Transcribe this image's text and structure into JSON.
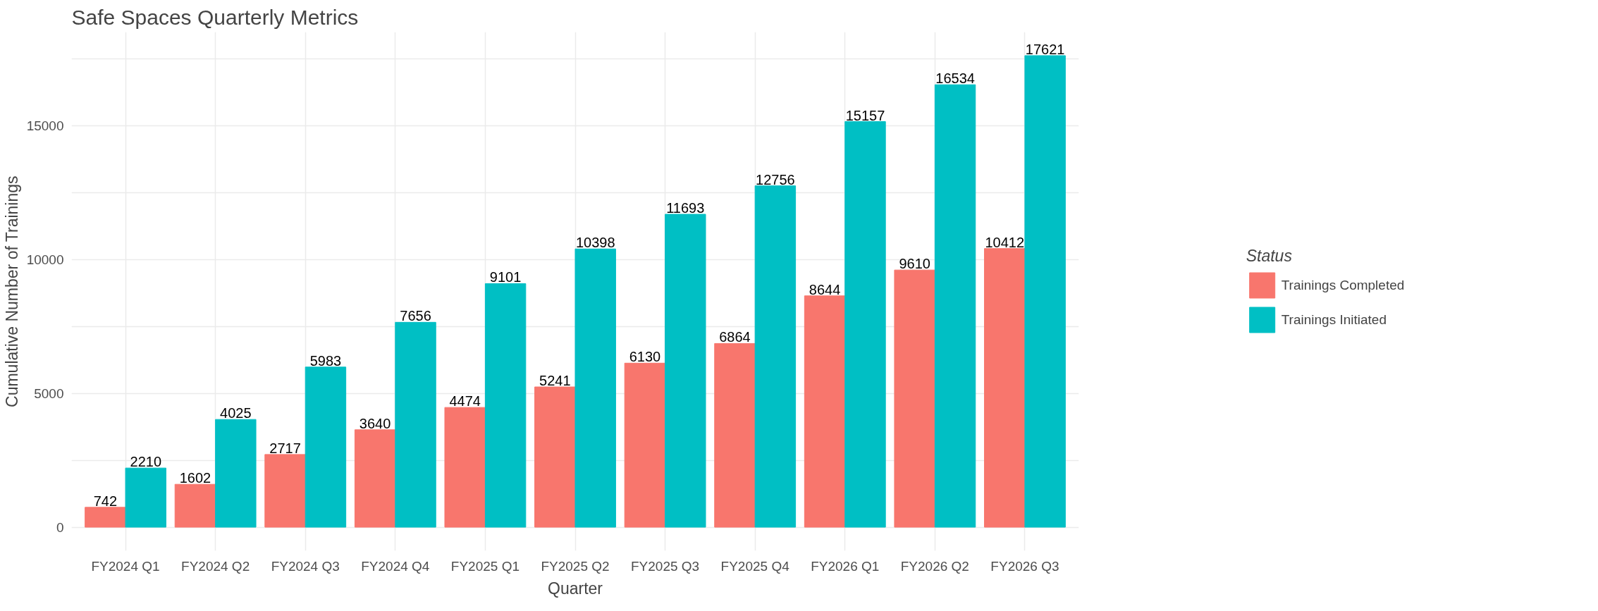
{
  "chart_data": {
    "type": "bar",
    "title": "Safe Spaces Quarterly Metrics",
    "xlabel": "Quarter",
    "ylabel": "Cumulative Number of Trainings",
    "legend_title": "Status",
    "categories": [
      "FY2024 Q1",
      "FY2024 Q2",
      "FY2024 Q3",
      "FY2024 Q4",
      "FY2025 Q1",
      "FY2025 Q2",
      "FY2025 Q3",
      "FY2025 Q4",
      "FY2026 Q1",
      "FY2026 Q2",
      "FY2026 Q3"
    ],
    "series": [
      {
        "name": "Trainings Completed",
        "color": "#f8766d",
        "values": [
          742,
          1602,
          2717,
          3640,
          4474,
          5241,
          6130,
          6864,
          8644,
          9610,
          10412
        ]
      },
      {
        "name": "Trainings Initiated",
        "color": "#00bfc4",
        "values": [
          2210,
          4025,
          5983,
          7656,
          9101,
          10398,
          11693,
          12756,
          15157,
          16534,
          17621
        ]
      }
    ],
    "ylim": [
      -881,
      18502
    ],
    "yticks": [
      0,
      {
        "value": 2500,
        "label": null
      },
      5000,
      {
        "value": 7500,
        "label": null
      },
      10000,
      {
        "value": 12500,
        "label": null
      },
      15000,
      {
        "value": 17500,
        "label": null
      }
    ],
    "grid": true,
    "legend": "right",
    "data_labels": true
  }
}
